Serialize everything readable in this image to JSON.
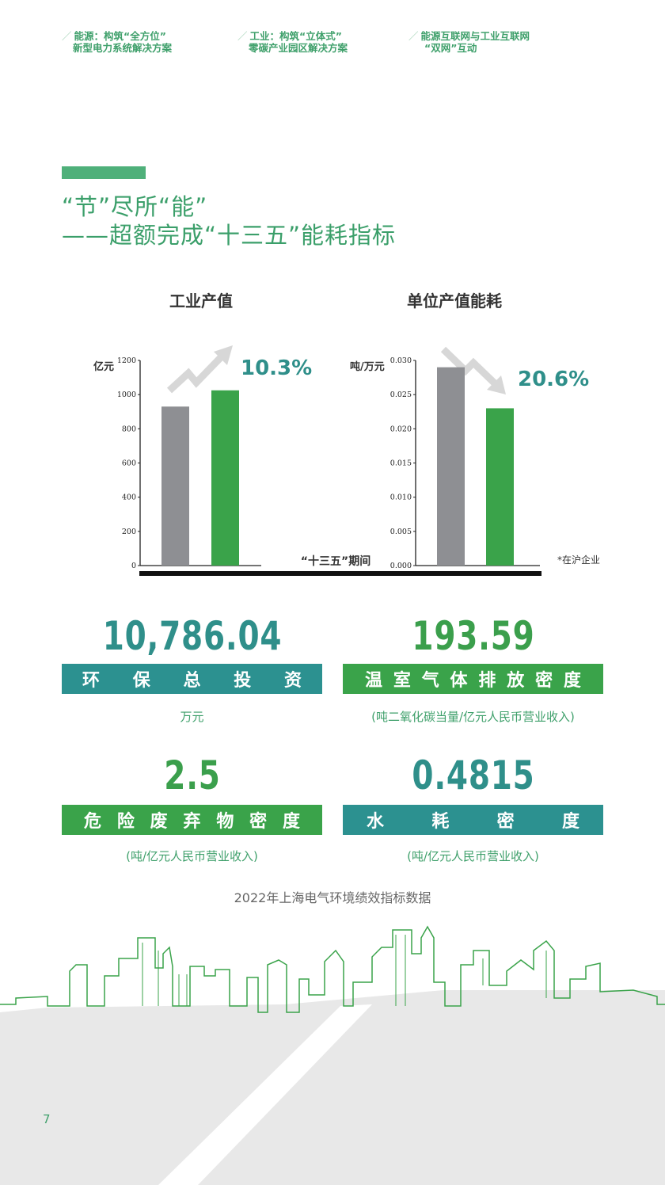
{
  "nav": [
    {
      "line1": "能源：构筑“全方位”",
      "line2": "新型电力系统解决方案"
    },
    {
      "line1": "工业：构筑“立体式”",
      "line2": "零碳产业园区解决方案"
    },
    {
      "line1": "能源互联网与工业互联网",
      "line2": "“双网”互动"
    }
  ],
  "heading": {
    "line1": "“节”尽所“能”",
    "line2": "——超额完成“十三五”能耗指标"
  },
  "chart_data": [
    {
      "type": "bar",
      "title": "工业产值",
      "ylabel": "亿元",
      "ylim": [
        0,
        1200
      ],
      "yticks": [
        "0",
        "200",
        "400",
        "600",
        "800",
        "1000",
        "1200"
      ],
      "categories": [
        "",
        ""
      ],
      "values": [
        930,
        1025
      ],
      "annotation": "10.3%",
      "trend": "up"
    },
    {
      "type": "bar",
      "title": "单位产值能耗",
      "ylabel": "吨/万元",
      "ylim": [
        0,
        0.03
      ],
      "yticks": [
        "0.000",
        "0.005",
        "0.010",
        "0.015",
        "0.020",
        "0.025",
        "0.030"
      ],
      "categories": [
        "",
        ""
      ],
      "values": [
        0.029,
        0.023
      ],
      "annotation": "20.6%",
      "trend": "down"
    }
  ],
  "chart_common": {
    "xlabel": "“十三五”期间",
    "note": "*在沪企业",
    "colors": {
      "prev": "#8e8f93",
      "curr": "#3aa34a"
    }
  },
  "metrics": [
    {
      "value": "10,786.04",
      "label_chars": [
        "环",
        "保",
        "总",
        "投",
        "资"
      ],
      "unit": "万元",
      "num_color": "teal",
      "band_color": "teal"
    },
    {
      "value": "193.59",
      "label_chars": [
        "温",
        "室",
        "气",
        "体",
        "排",
        "放",
        "密",
        "度"
      ],
      "unit": "(吨二氧化碳当量/亿元人民币营业收入)",
      "num_color": "green",
      "band_color": "green"
    },
    {
      "value": "2.5",
      "label_chars": [
        "危",
        "险",
        "废",
        "弃",
        "物",
        "密",
        "度"
      ],
      "unit": "(吨/亿元人民币营业收入)",
      "num_color": "green",
      "band_color": "green"
    },
    {
      "value": "0.4815",
      "label_chars": [
        "水",
        "耗",
        "密",
        "度"
      ],
      "unit": "(吨/亿元人民币营业收入)",
      "num_color": "teal",
      "band_color": "teal"
    }
  ],
  "caption": "2022年上海电气环境绩效指标数据",
  "page_number": "7"
}
